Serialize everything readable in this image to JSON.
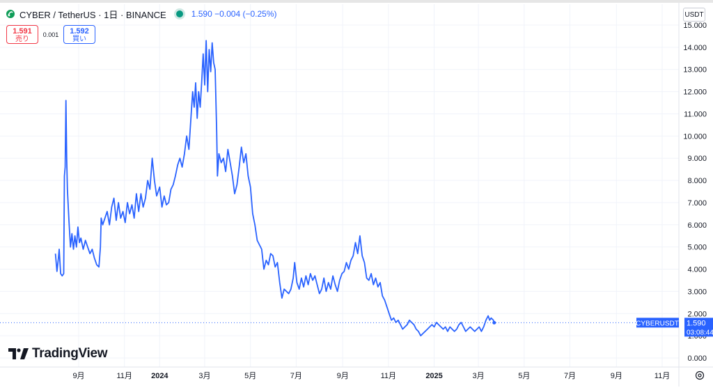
{
  "header": {
    "symbol_text": "CYBER / TetherUS · 1日 · BINANCE",
    "price_text": "1.590 −0.004 (−0.25%)",
    "symbol_icon": "cyber-token-icon",
    "live_status_color": "#089981"
  },
  "trade": {
    "sell_price": "1.591",
    "sell_label": "売り",
    "spread": "0.001",
    "buy_price": "1.592",
    "buy_label": "買い"
  },
  "currency_label": "USDT",
  "logo_text": "TradingView",
  "settings_icon": "gear-icon",
  "chart_data": {
    "type": "line",
    "series": [
      {
        "name": "CYBERUSDT",
        "color": "#2962ff",
        "points": [
          [
            "2023-08-15",
            4.7
          ],
          [
            "2023-08-17",
            3.9
          ],
          [
            "2023-08-19",
            4.5
          ],
          [
            "2023-08-20",
            4.9
          ],
          [
            "2023-08-22",
            3.8
          ],
          [
            "2023-08-24",
            3.7
          ],
          [
            "2023-08-26",
            3.8
          ],
          [
            "2023-08-27",
            8.2
          ],
          [
            "2023-08-28",
            8.6
          ],
          [
            "2023-08-29",
            11.6
          ],
          [
            "2023-08-30",
            9.0
          ],
          [
            "2023-08-31",
            7.6
          ],
          [
            "2023-09-02",
            6.2
          ],
          [
            "2023-09-04",
            5.0
          ],
          [
            "2023-09-06",
            5.6
          ],
          [
            "2023-09-08",
            4.9
          ],
          [
            "2023-09-10",
            5.5
          ],
          [
            "2023-09-12",
            5.0
          ],
          [
            "2023-09-14",
            5.9
          ],
          [
            "2023-09-16",
            5.2
          ],
          [
            "2023-09-18",
            5.4
          ],
          [
            "2023-09-21",
            4.9
          ],
          [
            "2023-09-24",
            5.3
          ],
          [
            "2023-09-27",
            5.0
          ],
          [
            "2023-09-30",
            4.7
          ],
          [
            "2023-10-03",
            4.9
          ],
          [
            "2023-10-06",
            4.5
          ],
          [
            "2023-10-09",
            4.2
          ],
          [
            "2023-10-12",
            4.1
          ],
          [
            "2023-10-14",
            5.0
          ],
          [
            "2023-10-15",
            6.3
          ],
          [
            "2023-10-17",
            6.0
          ],
          [
            "2023-10-20",
            6.3
          ],
          [
            "2023-10-23",
            6.6
          ],
          [
            "2023-10-26",
            6.0
          ],
          [
            "2023-10-29",
            6.8
          ],
          [
            "2023-11-01",
            7.2
          ],
          [
            "2023-11-04",
            6.2
          ],
          [
            "2023-11-07",
            7.0
          ],
          [
            "2023-11-10",
            6.3
          ],
          [
            "2023-11-13",
            6.6
          ],
          [
            "2023-11-16",
            6.1
          ],
          [
            "2023-11-19",
            7.0
          ],
          [
            "2023-11-22",
            6.5
          ],
          [
            "2023-11-25",
            6.9
          ],
          [
            "2023-11-28",
            6.3
          ],
          [
            "2023-12-01",
            7.4
          ],
          [
            "2023-12-04",
            6.6
          ],
          [
            "2023-12-07",
            7.4
          ],
          [
            "2023-12-10",
            6.8
          ],
          [
            "2023-12-13",
            7.2
          ],
          [
            "2023-12-16",
            8.0
          ],
          [
            "2023-12-19",
            7.6
          ],
          [
            "2023-12-22",
            9.0
          ],
          [
            "2023-12-25",
            8.0
          ],
          [
            "2023-12-28",
            7.3
          ],
          [
            "2024-01-01",
            7.7
          ],
          [
            "2024-01-04",
            6.8
          ],
          [
            "2024-01-07",
            7.3
          ],
          [
            "2024-01-10",
            6.9
          ],
          [
            "2024-01-13",
            7.0
          ],
          [
            "2024-01-16",
            7.6
          ],
          [
            "2024-01-19",
            7.8
          ],
          [
            "2024-01-22",
            8.2
          ],
          [
            "2024-01-25",
            8.7
          ],
          [
            "2024-01-28",
            9.0
          ],
          [
            "2024-01-31",
            8.6
          ],
          [
            "2024-02-03",
            9.2
          ],
          [
            "2024-02-06",
            10.0
          ],
          [
            "2024-02-09",
            9.4
          ],
          [
            "2024-02-12",
            11.0
          ],
          [
            "2024-02-14",
            12.0
          ],
          [
            "2024-02-16",
            11.3
          ],
          [
            "2024-02-18",
            12.4
          ],
          [
            "2024-02-20",
            10.8
          ],
          [
            "2024-02-22",
            12.0
          ],
          [
            "2024-02-24",
            11.3
          ],
          [
            "2024-02-26",
            12.4
          ],
          [
            "2024-02-28",
            13.7
          ],
          [
            "2024-03-01",
            12.3
          ],
          [
            "2024-03-03",
            14.3
          ],
          [
            "2024-03-05",
            12.0
          ],
          [
            "2024-03-07",
            13.9
          ],
          [
            "2024-03-09",
            12.9
          ],
          [
            "2024-03-11",
            14.2
          ],
          [
            "2024-03-13",
            13.3
          ],
          [
            "2024-03-15",
            13.0
          ],
          [
            "2024-03-17",
            10.2
          ],
          [
            "2024-03-18",
            8.2
          ],
          [
            "2024-03-20",
            9.2
          ],
          [
            "2024-03-23",
            8.8
          ],
          [
            "2024-03-26",
            9.0
          ],
          [
            "2024-03-29",
            8.4
          ],
          [
            "2024-04-01",
            9.4
          ],
          [
            "2024-04-04",
            8.8
          ],
          [
            "2024-04-07",
            8.2
          ],
          [
            "2024-04-10",
            7.4
          ],
          [
            "2024-04-13",
            7.8
          ],
          [
            "2024-04-16",
            8.6
          ],
          [
            "2024-04-19",
            9.5
          ],
          [
            "2024-04-22",
            8.8
          ],
          [
            "2024-04-25",
            9.2
          ],
          [
            "2024-04-28",
            8.2
          ],
          [
            "2024-05-01",
            7.7
          ],
          [
            "2024-05-04",
            6.5
          ],
          [
            "2024-05-07",
            6.0
          ],
          [
            "2024-05-10",
            5.3
          ],
          [
            "2024-05-13",
            5.1
          ],
          [
            "2024-05-16",
            4.9
          ],
          [
            "2024-05-19",
            4.0
          ],
          [
            "2024-05-22",
            4.4
          ],
          [
            "2024-05-25",
            4.2
          ],
          [
            "2024-05-28",
            4.7
          ],
          [
            "2024-05-31",
            4.6
          ],
          [
            "2024-06-03",
            4.1
          ],
          [
            "2024-06-06",
            4.3
          ],
          [
            "2024-06-09",
            3.4
          ],
          [
            "2024-06-12",
            2.7
          ],
          [
            "2024-06-15",
            3.1
          ],
          [
            "2024-06-18",
            3.0
          ],
          [
            "2024-06-21",
            2.9
          ],
          [
            "2024-06-24",
            3.1
          ],
          [
            "2024-06-27",
            3.6
          ],
          [
            "2024-06-29",
            4.3
          ],
          [
            "2024-07-02",
            3.4
          ],
          [
            "2024-07-05",
            3.1
          ],
          [
            "2024-07-08",
            3.6
          ],
          [
            "2024-07-11",
            3.2
          ],
          [
            "2024-07-14",
            3.7
          ],
          [
            "2024-07-17",
            3.3
          ],
          [
            "2024-07-20",
            3.8
          ],
          [
            "2024-07-23",
            3.5
          ],
          [
            "2024-07-26",
            3.7
          ],
          [
            "2024-07-29",
            3.3
          ],
          [
            "2024-08-01",
            2.9
          ],
          [
            "2024-08-04",
            3.1
          ],
          [
            "2024-08-07",
            3.6
          ],
          [
            "2024-08-10",
            3.0
          ],
          [
            "2024-08-13",
            3.4
          ],
          [
            "2024-08-16",
            3.1
          ],
          [
            "2024-08-19",
            3.7
          ],
          [
            "2024-08-22",
            3.3
          ],
          [
            "2024-08-25",
            3.0
          ],
          [
            "2024-08-28",
            3.5
          ],
          [
            "2024-08-31",
            3.8
          ],
          [
            "2024-09-03",
            3.9
          ],
          [
            "2024-09-06",
            4.3
          ],
          [
            "2024-09-09",
            4.0
          ],
          [
            "2024-09-12",
            4.4
          ],
          [
            "2024-09-15",
            4.6
          ],
          [
            "2024-09-18",
            5.2
          ],
          [
            "2024-09-21",
            4.7
          ],
          [
            "2024-09-24",
            5.5
          ],
          [
            "2024-09-27",
            4.6
          ],
          [
            "2024-09-30",
            4.3
          ],
          [
            "2024-10-03",
            3.6
          ],
          [
            "2024-10-06",
            3.5
          ],
          [
            "2024-10-09",
            3.8
          ],
          [
            "2024-10-12",
            3.3
          ],
          [
            "2024-10-15",
            3.6
          ],
          [
            "2024-10-18",
            3.2
          ],
          [
            "2024-10-21",
            3.4
          ],
          [
            "2024-10-24",
            2.8
          ],
          [
            "2024-10-27",
            2.6
          ],
          [
            "2024-10-30",
            2.3
          ],
          [
            "2024-11-02",
            2.0
          ],
          [
            "2024-11-05",
            1.7
          ],
          [
            "2024-11-08",
            1.8
          ],
          [
            "2024-11-11",
            1.6
          ],
          [
            "2024-11-14",
            1.7
          ],
          [
            "2024-11-17",
            1.5
          ],
          [
            "2024-11-20",
            1.3
          ],
          [
            "2024-11-23",
            1.4
          ],
          [
            "2024-11-26",
            1.5
          ],
          [
            "2024-11-29",
            1.7
          ],
          [
            "2024-12-02",
            1.6
          ],
          [
            "2024-12-05",
            1.5
          ],
          [
            "2024-12-08",
            1.3
          ],
          [
            "2024-12-11",
            1.2
          ],
          [
            "2024-12-14",
            1.0
          ],
          [
            "2024-12-17",
            1.1
          ],
          [
            "2024-12-20",
            1.2
          ],
          [
            "2024-12-23",
            1.3
          ],
          [
            "2024-12-26",
            1.4
          ],
          [
            "2024-12-29",
            1.5
          ],
          [
            "2025-01-01",
            1.4
          ],
          [
            "2025-01-04",
            1.6
          ],
          [
            "2025-01-07",
            1.5
          ],
          [
            "2025-01-10",
            1.4
          ],
          [
            "2025-01-13",
            1.3
          ],
          [
            "2025-01-16",
            1.4
          ],
          [
            "2025-01-19",
            1.2
          ],
          [
            "2025-01-22",
            1.4
          ],
          [
            "2025-01-25",
            1.3
          ],
          [
            "2025-01-28",
            1.2
          ],
          [
            "2025-01-31",
            1.3
          ],
          [
            "2025-02-03",
            1.5
          ],
          [
            "2025-02-06",
            1.6
          ],
          [
            "2025-02-09",
            1.4
          ],
          [
            "2025-02-12",
            1.2
          ],
          [
            "2025-02-15",
            1.3
          ],
          [
            "2025-02-18",
            1.4
          ],
          [
            "2025-02-21",
            1.3
          ],
          [
            "2025-02-24",
            1.2
          ],
          [
            "2025-02-27",
            1.3
          ],
          [
            "2025-03-02",
            1.4
          ],
          [
            "2025-03-05",
            1.2
          ],
          [
            "2025-03-08",
            1.4
          ],
          [
            "2025-03-11",
            1.7
          ],
          [
            "2025-03-14",
            1.9
          ],
          [
            "2025-03-16",
            1.7
          ],
          [
            "2025-03-18",
            1.8
          ],
          [
            "2025-03-21",
            1.7
          ],
          [
            "2025-03-22",
            1.59
          ]
        ]
      }
    ],
    "x_ticks": [
      {
        "date": "2023-09-15",
        "label": "9月"
      },
      {
        "date": "2023-11-15",
        "label": "11月"
      },
      {
        "date": "2024-01-01",
        "label": "2024"
      },
      {
        "date": "2024-03-01",
        "label": "3月"
      },
      {
        "date": "2024-05-01",
        "label": "5月"
      },
      {
        "date": "2024-07-01",
        "label": "7月"
      },
      {
        "date": "2024-09-01",
        "label": "9月"
      },
      {
        "date": "2024-11-01",
        "label": "11月"
      },
      {
        "date": "2025-01-01",
        "label": "2025"
      },
      {
        "date": "2025-03-01",
        "label": "3月"
      },
      {
        "date": "2025-05-01",
        "label": "5月"
      },
      {
        "date": "2025-07-01",
        "label": "7月"
      },
      {
        "date": "2025-09-01",
        "label": "9月"
      },
      {
        "date": "2025-11-01",
        "label": "11月"
      }
    ],
    "y_ticks": [
      0,
      1,
      2,
      3,
      4,
      5,
      6,
      7,
      8,
      9,
      10,
      11,
      12,
      13,
      14,
      15
    ],
    "y_tick_labels": [
      "0.000",
      "1.000",
      "2.000",
      "3.000",
      "4.000",
      "5.000",
      "6.000",
      "7.000",
      "8.000",
      "9.000",
      "10.000",
      "11.000",
      "12.000",
      "13.000",
      "14.000",
      "15.000"
    ],
    "ylim": [
      0,
      15
    ],
    "grid": true,
    "last_price": 1.59,
    "last_price_label": "1.590",
    "countdown_label": "03:08:44",
    "series_tag": "CYBERUSDT"
  }
}
